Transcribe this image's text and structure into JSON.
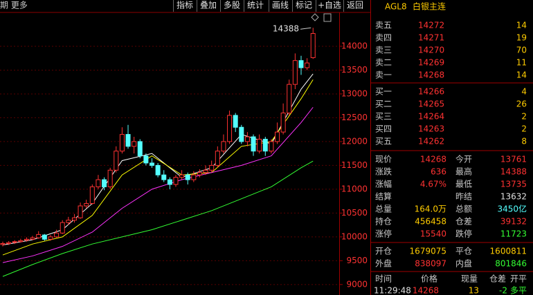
{
  "toolbar": {
    "left": "期 更多",
    "buttons": [
      "指标",
      "叠加",
      "多股",
      "统计",
      "画线",
      "标记",
      "+自选",
      "返回"
    ]
  },
  "header": {
    "code": "AGL8",
    "name": "白银主连"
  },
  "chart": {
    "type": "candlestick",
    "ylim": [
      8780,
      14710
    ],
    "yticks": [
      9000,
      9500,
      10000,
      10500,
      11000,
      11500,
      12000,
      12500,
      13000,
      13500,
      14000
    ],
    "high_label": 14388,
    "candles": [
      [
        9840,
        9900,
        9800,
        9860
      ],
      [
        9860,
        9910,
        9830,
        9880
      ],
      [
        9890,
        9930,
        9850,
        9900
      ],
      [
        9900,
        9960,
        9880,
        9920
      ],
      [
        9930,
        9990,
        9900,
        9950
      ],
      [
        9950,
        10020,
        9930,
        9980
      ],
      [
        9980,
        10120,
        9960,
        10050
      ],
      [
        10040,
        10060,
        9920,
        9950
      ],
      [
        9950,
        10040,
        9920,
        10000
      ],
      [
        10000,
        10150,
        9980,
        10080
      ],
      [
        10080,
        10350,
        10060,
        10300
      ],
      [
        10300,
        10420,
        10250,
        10350
      ],
      [
        10350,
        10480,
        10300,
        10400
      ],
      [
        10400,
        10720,
        10380,
        10650
      ],
      [
        10650,
        10780,
        10600,
        10700
      ],
      [
        10700,
        11100,
        10680,
        11050
      ],
      [
        11050,
        11300,
        11000,
        11200
      ],
      [
        11200,
        11250,
        10980,
        11050
      ],
      [
        11050,
        11450,
        11000,
        11400
      ],
      [
        11400,
        11900,
        11350,
        11800
      ],
      [
        11800,
        12300,
        11750,
        12150
      ],
      [
        12150,
        12350,
        11850,
        11900
      ],
      [
        11900,
        12100,
        11750,
        12000
      ],
      [
        12000,
        12050,
        11650,
        11700
      ],
      [
        11700,
        11750,
        11500,
        11550
      ],
      [
        11550,
        11650,
        11450,
        11500
      ],
      [
        11500,
        11550,
        11250,
        11300
      ],
      [
        11300,
        11400,
        11150,
        11200
      ],
      [
        11200,
        11250,
        11000,
        11100
      ],
      [
        11100,
        11300,
        11050,
        11250
      ],
      [
        11250,
        11400,
        11200,
        11300
      ],
      [
        11300,
        11350,
        11100,
        11200
      ],
      [
        11200,
        11380,
        11150,
        11300
      ],
      [
        11300,
        11420,
        11250,
        11350
      ],
      [
        11350,
        11500,
        11300,
        11400
      ],
      [
        11400,
        11600,
        11350,
        11500
      ],
      [
        11500,
        11900,
        11450,
        11800
      ],
      [
        11800,
        12150,
        11750,
        12000
      ],
      [
        12000,
        12650,
        11950,
        12550
      ],
      [
        12550,
        12600,
        12200,
        12300
      ],
      [
        12300,
        12350,
        11950,
        12000
      ],
      [
        12000,
        12200,
        11900,
        12100
      ],
      [
        12100,
        12150,
        11700,
        11800
      ],
      [
        11800,
        12150,
        11750,
        12050
      ],
      [
        12050,
        12100,
        11700,
        11800
      ],
      [
        11800,
        12050,
        11750,
        12000
      ],
      [
        12000,
        12400,
        11950,
        12200
      ],
      [
        12200,
        12800,
        12150,
        12600
      ],
      [
        12600,
        13300,
        12550,
        13200
      ],
      [
        13200,
        13850,
        13100,
        13700
      ],
      [
        13700,
        13800,
        13400,
        13550
      ],
      [
        13550,
        13750,
        13500,
        13650
      ],
      [
        13761,
        14388,
        13735,
        14268
      ]
    ],
    "ma_x": [
      0,
      5,
      10,
      15,
      20,
      25,
      30,
      35,
      40,
      45,
      50,
      52
    ],
    "ma_lines": [
      {
        "color": "#ffffff",
        "values": [
          9830,
          9940,
          10150,
          10700,
          11600,
          11750,
          11250,
          11450,
          12150,
          11950,
          13100,
          13420
        ]
      },
      {
        "color": "#ffff00",
        "values": [
          9620,
          9850,
          10000,
          10450,
          11300,
          11700,
          11300,
          11350,
          11900,
          12000,
          12900,
          13300
        ]
      },
      {
        "color": "#ff33ff",
        "values": [
          9460,
          9600,
          9800,
          10100,
          10600,
          11000,
          11200,
          11350,
          11500,
          11700,
          12400,
          12720
        ]
      },
      {
        "color": "#33ff33",
        "values": [
          9170,
          9420,
          9650,
          9850,
          10000,
          10150,
          10350,
          10550,
          10800,
          11050,
          11450,
          11590
        ]
      }
    ]
  },
  "asks": [
    {
      "label": "卖五",
      "price": 14272,
      "vol": 14
    },
    {
      "label": "卖四",
      "price": 14271,
      "vol": 19
    },
    {
      "label": "卖三",
      "price": 14270,
      "vol": 70
    },
    {
      "label": "卖二",
      "price": 14269,
      "vol": 11
    },
    {
      "label": "卖一",
      "price": 14268,
      "vol": 14
    }
  ],
  "bids": [
    {
      "label": "买一",
      "price": 14266,
      "vol": 4
    },
    {
      "label": "买二",
      "price": 14265,
      "vol": 26
    },
    {
      "label": "买三",
      "price": 14264,
      "vol": 2
    },
    {
      "label": "买四",
      "price": 14263,
      "vol": 2
    },
    {
      "label": "买五",
      "price": 14262,
      "vol": 8
    }
  ],
  "stats": [
    [
      {
        "label": "现价",
        "value": 14268,
        "color": "#ff3232"
      },
      {
        "label": "今开",
        "value": 13761,
        "color": "#ff3232"
      }
    ],
    [
      {
        "label": "涨跌",
        "value": 636,
        "color": "#ff3232"
      },
      {
        "label": "最高",
        "value": 14388,
        "color": "#ff3232"
      }
    ],
    [
      {
        "label": "涨幅",
        "value": "4.67%",
        "color": "#ff3232"
      },
      {
        "label": "最低",
        "value": 13735,
        "color": "#ff3232"
      }
    ],
    [
      {
        "label": "结算"
      },
      {
        "label": "昨结",
        "value": 13632,
        "color": "#e0e0e0"
      }
    ],
    [
      {
        "label": "总量",
        "value": "164.0万",
        "color": "#ffcc00"
      },
      {
        "label": "总额",
        "value": "3450亿",
        "color": "#54ffff"
      }
    ],
    [
      {
        "label": "持仓",
        "value": 456458,
        "color": "#ffcc00"
      },
      {
        "label": "仓差",
        "value": 39132,
        "color": "#ff3232"
      }
    ],
    [
      {
        "label": "涨停",
        "value": 15540,
        "color": "#ff3232"
      },
      {
        "label": "跌停",
        "value": 11723,
        "color": "#33ff33"
      }
    ]
  ],
  "flow": [
    [
      {
        "label": "开仓",
        "value": 1679075,
        "color": "#ffcc00"
      },
      {
        "label": "平仓",
        "value": 1600811,
        "color": "#ffcc00"
      }
    ],
    [
      {
        "label": "外盘",
        "value": 838097,
        "color": "#ff3232"
      },
      {
        "label": "内盘",
        "value": 801846,
        "color": "#33ff33"
      }
    ]
  ],
  "ticks": {
    "columns": [
      "时间",
      "价格",
      "现量",
      "仓差",
      "开平"
    ],
    "rows": [
      [
        {
          "text": "11:29:48",
          "color": "#e0e0e0"
        },
        {
          "text": 14268,
          "color": "#ff3232"
        },
        {
          "text": 13,
          "color": "#ffcc00"
        },
        {
          "text": -2,
          "color": "#33ff33"
        },
        {
          "text": "多平",
          "color": "#33ff33"
        }
      ]
    ]
  }
}
